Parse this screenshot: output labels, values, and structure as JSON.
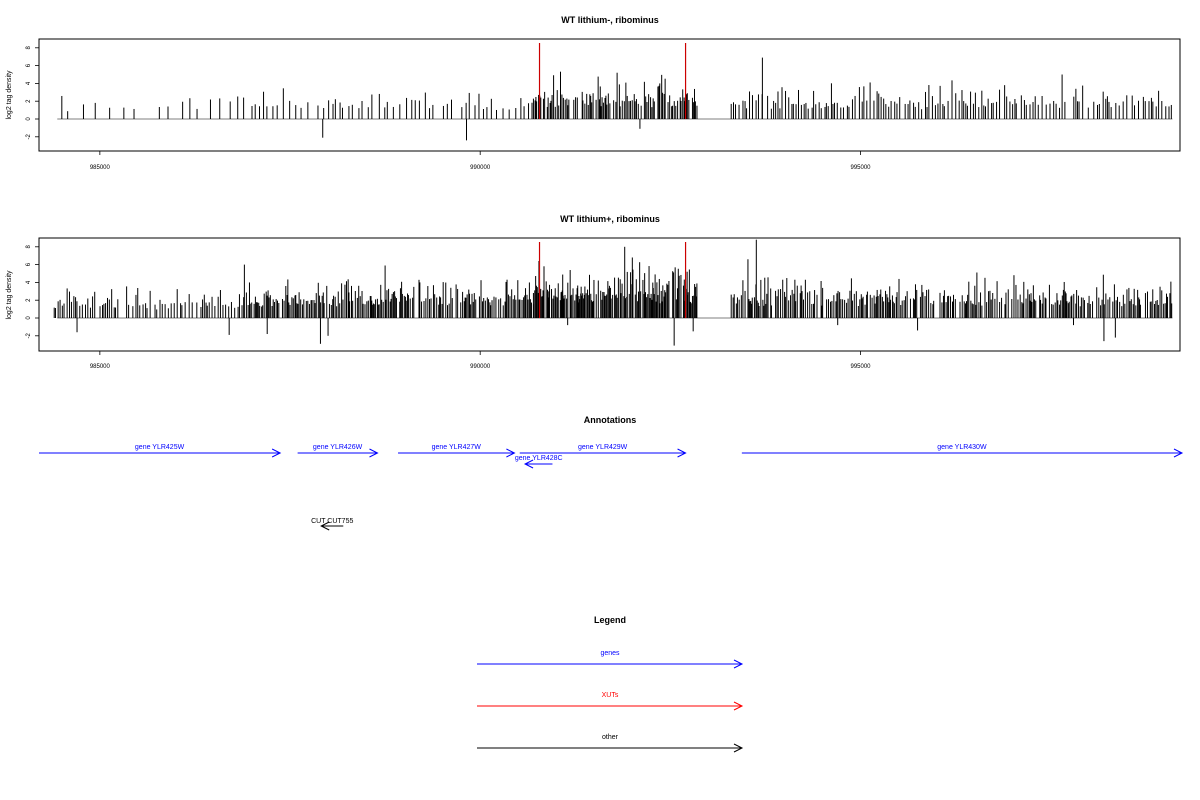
{
  "chart_data": [
    {
      "type": "bar",
      "title": "WT lithium-, ribominus",
      "ylabel": "log2 tag density",
      "xlabel": "",
      "xlim": [
        984200,
        999200
      ],
      "ylim": [
        -4,
        9
      ],
      "x_ticks": [
        "985000",
        "990000",
        "995000"
      ],
      "y_ticks": [
        "-2",
        "0",
        "2",
        "4",
        "6",
        "8"
      ],
      "markers": [
        990780,
        992700
      ],
      "seed": 7,
      "density_segments": [
        {
          "from": 984500,
          "to": 987000,
          "step": 140,
          "max": 3.2
        },
        {
          "from": 987000,
          "to": 990700,
          "step": 60,
          "max": 3.6
        },
        {
          "from": 990700,
          "to": 992850,
          "step": 18,
          "max": 5.0
        },
        {
          "from": 993300,
          "to": 999100,
          "step": 35,
          "max": 4.2
        }
      ],
      "peaks": [
        [
          993710,
          6.9
        ],
        [
          991800,
          5.2
        ],
        [
          997650,
          5.0
        ]
      ],
      "negatives": [
        [
          987930,
          -2.1
        ],
        [
          989820,
          -2.4
        ],
        [
          992100,
          -1.1
        ]
      ]
    },
    {
      "type": "bar",
      "title": "WT lithium+, ribominus",
      "ylabel": "log2 tag density",
      "xlabel": "",
      "xlim": [
        984200,
        999200
      ],
      "ylim": [
        -4,
        9
      ],
      "x_ticks": [
        "985000",
        "990000",
        "995000"
      ],
      "y_ticks": [
        "-2",
        "0",
        "2",
        "4",
        "6",
        "8"
      ],
      "markers": [
        990780,
        992700
      ],
      "seed": 19,
      "density_segments": [
        {
          "from": 984400,
          "to": 986900,
          "step": 30,
          "max": 3.8
        },
        {
          "from": 986900,
          "to": 990700,
          "step": 18,
          "max": 4.8
        },
        {
          "from": 990700,
          "to": 992850,
          "step": 12,
          "max": 6.2
        },
        {
          "from": 993300,
          "to": 999100,
          "step": 20,
          "max": 4.8
        }
      ],
      "peaks": [
        [
          993630,
          8.8
        ],
        [
          993520,
          6.6
        ],
        [
          991900,
          8.0
        ],
        [
          992000,
          6.8
        ],
        [
          986900,
          6.0
        ],
        [
          988750,
          5.9
        ]
      ],
      "negatives": [
        [
          984700,
          -1.6
        ],
        [
          986700,
          -1.9
        ],
        [
          987200,
          -1.8
        ],
        [
          987900,
          -2.9
        ],
        [
          988000,
          -2.0
        ],
        [
          991150,
          -0.8
        ],
        [
          992550,
          -3.1
        ],
        [
          992800,
          -1.5
        ],
        [
          994700,
          -0.8
        ],
        [
          995750,
          -1.4
        ],
        [
          997800,
          -0.8
        ],
        [
          998200,
          -2.6
        ],
        [
          998350,
          -2.2
        ]
      ]
    }
  ],
  "annotations": {
    "title": "Annotations",
    "genes": [
      {
        "label": "gene YLR425W",
        "from": 984200,
        "to": 987370,
        "dir": "right",
        "row": 0
      },
      {
        "label": "gene YLR426W",
        "from": 987600,
        "to": 988650,
        "dir": "right",
        "row": 0
      },
      {
        "label": "gene YLR427W",
        "from": 988920,
        "to": 990450,
        "dir": "right",
        "row": 0
      },
      {
        "label": "gene YLR428C",
        "from": 990590,
        "to": 990950,
        "dir": "left",
        "row": 1
      },
      {
        "label": "gene YLR429W",
        "from": 990520,
        "to": 992700,
        "dir": "right",
        "row": 0
      },
      {
        "label": "gene YLR430W",
        "from": 993440,
        "to": 999500,
        "dir": "right",
        "row": 0
      }
    ],
    "other": [
      {
        "label": "CUT CUT755",
        "from": 987910,
        "to": 988200,
        "dir": "left"
      }
    ]
  },
  "legend": {
    "title": "Legend",
    "items": [
      {
        "label": "genes",
        "color": "#0000ff"
      },
      {
        "label": "XUTs",
        "color": "#ff0000"
      },
      {
        "label": "other",
        "color": "#000000"
      }
    ]
  },
  "colors": {
    "gene": "#0000ff",
    "xut": "#ff0000",
    "other": "#000000",
    "marker": "#cc0000"
  }
}
